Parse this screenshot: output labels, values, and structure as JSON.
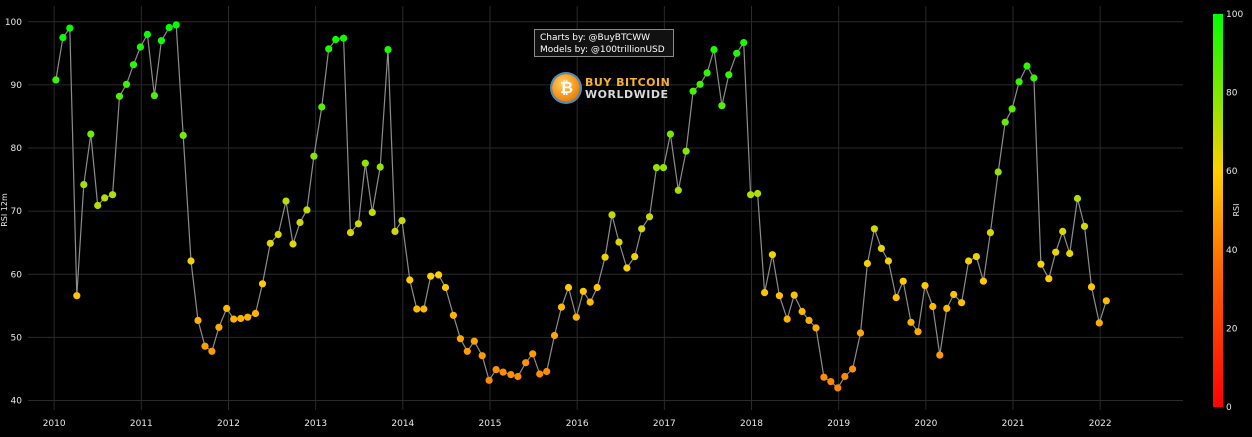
{
  "credits": {
    "line1": "Charts by: @BuyBTCWW",
    "line2": "Models by: @100trillionUSD"
  },
  "logo": {
    "line1": "BUY BITCOIN",
    "line2": "WORLDWIDE",
    "coin_glyph": "₿",
    "icon": "bitcoin-coin-icon"
  },
  "colorbar": {
    "title": "RSI",
    "ticks": [
      0,
      20,
      40,
      60,
      80,
      100
    ],
    "colors": [
      "#ff0000",
      "#ff6600",
      "#ffd000",
      "#00ff00"
    ]
  },
  "chart_data": {
    "type": "scatter",
    "mode": "lines+markers",
    "ylabel": "RSI 12m",
    "ylim": [
      38.5,
      102.5
    ],
    "yticks": [
      40,
      50,
      60,
      70,
      80,
      90,
      100
    ],
    "xlim": [
      2009.7,
      2022.95
    ],
    "xticks": [
      2010,
      2011,
      2012,
      2013,
      2014,
      2015,
      2016,
      2017,
      2018,
      2019,
      2020,
      2021,
      2022
    ],
    "line_color": "#8c8c8c",
    "color_scale": "RSI: 0 red → 100 green",
    "grid": true,
    "points": [
      [
        2010.02,
        90.8
      ],
      [
        2010.1,
        97.5
      ],
      [
        2010.18,
        99.0
      ],
      [
        2010.26,
        56.6
      ],
      [
        2010.34,
        74.2
      ],
      [
        2010.42,
        82.2
      ],
      [
        2010.5,
        70.9
      ],
      [
        2010.58,
        72.1
      ],
      [
        2010.67,
        72.6
      ],
      [
        2010.75,
        88.2
      ],
      [
        2010.83,
        90.1
      ],
      [
        2010.91,
        93.2
      ],
      [
        2010.99,
        96.0
      ],
      [
        2011.07,
        98.0
      ],
      [
        2011.15,
        88.3
      ],
      [
        2011.23,
        97.0
      ],
      [
        2011.32,
        99.1
      ],
      [
        2011.4,
        99.5
      ],
      [
        2011.48,
        82.0
      ],
      [
        2011.57,
        62.1
      ],
      [
        2011.65,
        52.7
      ],
      [
        2011.73,
        48.6
      ],
      [
        2011.81,
        47.8
      ],
      [
        2011.89,
        51.6
      ],
      [
        2011.98,
        54.6
      ],
      [
        2012.06,
        52.9
      ],
      [
        2012.14,
        53.0
      ],
      [
        2012.22,
        53.2
      ],
      [
        2012.31,
        53.8
      ],
      [
        2012.39,
        58.5
      ],
      [
        2012.48,
        64.9
      ],
      [
        2012.57,
        66.3
      ],
      [
        2012.66,
        71.6
      ],
      [
        2012.74,
        64.8
      ],
      [
        2012.82,
        68.2
      ],
      [
        2012.9,
        70.2
      ],
      [
        2012.98,
        78.7
      ],
      [
        2013.07,
        86.5
      ],
      [
        2013.15,
        95.7
      ],
      [
        2013.23,
        97.2
      ],
      [
        2013.32,
        97.4
      ],
      [
        2013.4,
        66.6
      ],
      [
        2013.49,
        68.0
      ],
      [
        2013.57,
        77.6
      ],
      [
        2013.65,
        69.8
      ],
      [
        2013.74,
        77.0
      ],
      [
        2013.83,
        95.6
      ],
      [
        2013.91,
        66.8
      ],
      [
        2013.99,
        68.5
      ],
      [
        2014.08,
        59.1
      ],
      [
        2014.16,
        54.5
      ],
      [
        2014.24,
        54.5
      ],
      [
        2014.32,
        59.7
      ],
      [
        2014.41,
        59.9
      ],
      [
        2014.49,
        57.9
      ],
      [
        2014.58,
        53.5
      ],
      [
        2014.66,
        49.8
      ],
      [
        2014.74,
        47.8
      ],
      [
        2014.82,
        49.4
      ],
      [
        2014.91,
        47.1
      ],
      [
        2014.99,
        43.2
      ],
      [
        2015.07,
        44.9
      ],
      [
        2015.15,
        44.5
      ],
      [
        2015.24,
        44.1
      ],
      [
        2015.32,
        43.8
      ],
      [
        2015.41,
        46.0
      ],
      [
        2015.49,
        47.4
      ],
      [
        2015.57,
        44.2
      ],
      [
        2015.65,
        44.6
      ],
      [
        2015.74,
        50.3
      ],
      [
        2015.82,
        54.8
      ],
      [
        2015.9,
        57.9
      ],
      [
        2015.99,
        53.2
      ],
      [
        2016.07,
        57.3
      ],
      [
        2016.15,
        55.6
      ],
      [
        2016.23,
        57.9
      ],
      [
        2016.32,
        62.7
      ],
      [
        2016.4,
        69.4
      ],
      [
        2016.48,
        65.1
      ],
      [
        2016.57,
        61.0
      ],
      [
        2016.66,
        62.8
      ],
      [
        2016.74,
        67.2
      ],
      [
        2016.83,
        69.1
      ],
      [
        2016.91,
        76.9
      ],
      [
        2016.99,
        76.9
      ],
      [
        2017.07,
        82.2
      ],
      [
        2017.16,
        73.3
      ],
      [
        2017.25,
        79.5
      ],
      [
        2017.33,
        89.0
      ],
      [
        2017.41,
        90.1
      ],
      [
        2017.49,
        91.9
      ],
      [
        2017.57,
        95.6
      ],
      [
        2017.66,
        86.7
      ],
      [
        2017.74,
        91.6
      ],
      [
        2017.83,
        95.0
      ],
      [
        2017.91,
        96.7
      ],
      [
        2017.99,
        72.6
      ],
      [
        2018.07,
        72.8
      ],
      [
        2018.15,
        57.1
      ],
      [
        2018.24,
        63.1
      ],
      [
        2018.32,
        56.6
      ],
      [
        2018.41,
        52.9
      ],
      [
        2018.49,
        56.7
      ],
      [
        2018.58,
        54.1
      ],
      [
        2018.66,
        52.7
      ],
      [
        2018.74,
        51.5
      ],
      [
        2018.83,
        43.7
      ],
      [
        2018.91,
        43.0
      ],
      [
        2018.99,
        42.0
      ],
      [
        2019.07,
        43.8
      ],
      [
        2019.16,
        45.0
      ],
      [
        2019.25,
        50.7
      ],
      [
        2019.33,
        61.7
      ],
      [
        2019.41,
        67.2
      ],
      [
        2019.49,
        64.1
      ],
      [
        2019.57,
        62.1
      ],
      [
        2019.66,
        56.3
      ],
      [
        2019.74,
        58.9
      ],
      [
        2019.83,
        52.4
      ],
      [
        2019.91,
        50.9
      ],
      [
        2019.99,
        58.2
      ],
      [
        2020.08,
        54.9
      ],
      [
        2020.16,
        47.2
      ],
      [
        2020.24,
        54.6
      ],
      [
        2020.32,
        56.8
      ],
      [
        2020.41,
        55.5
      ],
      [
        2020.49,
        62.1
      ],
      [
        2020.58,
        62.8
      ],
      [
        2020.66,
        58.9
      ],
      [
        2020.74,
        66.6
      ],
      [
        2020.83,
        76.2
      ],
      [
        2020.91,
        84.1
      ],
      [
        2020.99,
        86.2
      ],
      [
        2021.07,
        90.5
      ],
      [
        2021.16,
        93.0
      ],
      [
        2021.24,
        91.1
      ],
      [
        2021.32,
        61.6
      ],
      [
        2021.41,
        59.3
      ],
      [
        2021.49,
        63.5
      ],
      [
        2021.57,
        66.8
      ],
      [
        2021.65,
        63.3
      ],
      [
        2021.74,
        72.0
      ],
      [
        2021.82,
        67.6
      ],
      [
        2021.9,
        58.0
      ],
      [
        2021.99,
        52.3
      ],
      [
        2022.07,
        55.8
      ]
    ]
  }
}
